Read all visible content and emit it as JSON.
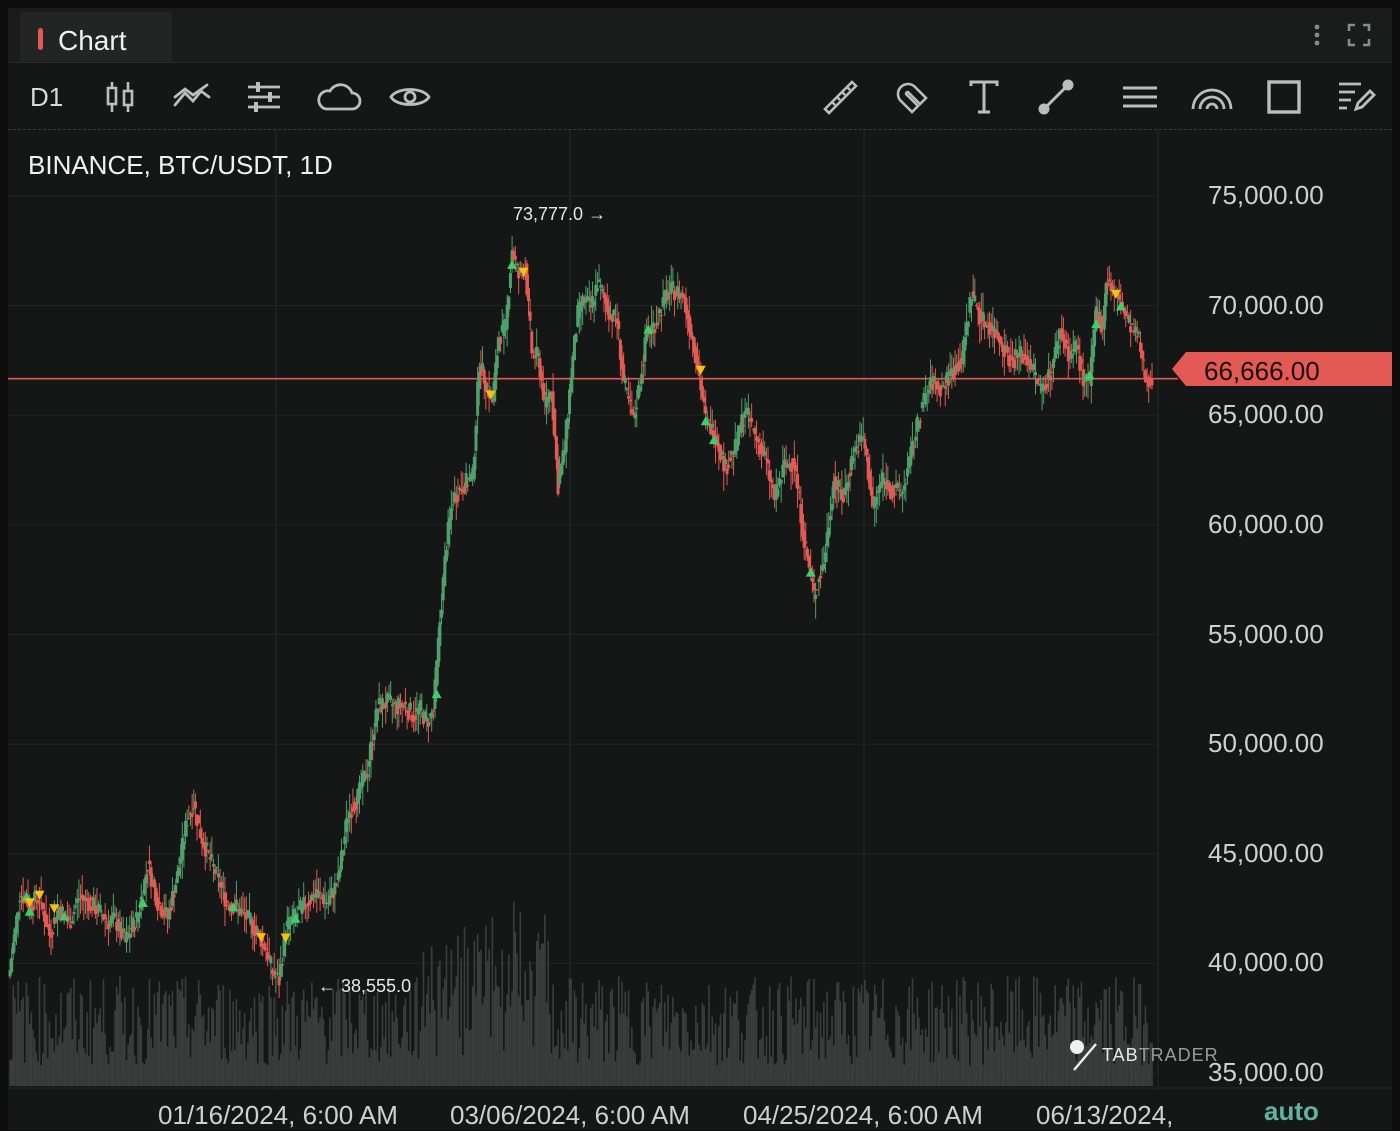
{
  "tab": {
    "label": "Chart"
  },
  "toolbar": {
    "timeframe": "D1",
    "left_tools": [
      "candlestick-icon",
      "indicators-icon",
      "settings-sliders-icon",
      "cloud-icon",
      "eye-icon"
    ],
    "right_tools": [
      "ruler-icon",
      "magnet-icon",
      "text-icon",
      "trendline-icon",
      "horizontal-lines-icon",
      "arc-icon",
      "rectangle-icon",
      "edit-list-icon"
    ]
  },
  "chart": {
    "symbol": "BINANCE, BTC/USDT, 1D",
    "current_price_label": "66,666.00",
    "auto_label": "auto",
    "watermark_a": "TAB",
    "watermark_b": "TRADER",
    "high_label": "73,777.0",
    "low_label": "38,555.0"
  },
  "colors": {
    "up": "#4fa06b",
    "down": "#e35a54",
    "buy_marker": "#3ecf6b",
    "sell_marker": "#f6c20a",
    "price_line": "#e35a54"
  },
  "chart_data": {
    "type": "candlestick",
    "title": "BINANCE, BTC/USDT, 1D",
    "y_ticks": [
      "75,000.00",
      "70,000.00",
      "65,000.00",
      "60,000.00",
      "55,000.00",
      "50,000.00",
      "45,000.00",
      "40,000.00",
      "35,000.00"
    ],
    "ylim": [
      34000,
      78800
    ],
    "x_ticks": [
      "01/16/2024, 6:00 AM",
      "03/06/2024, 6:00 AM",
      "04/25/2024, 6:00 AM",
      "06/13/2024,"
    ],
    "current_price": 66666,
    "high": 73777,
    "low": 38555,
    "path": [
      [
        0,
        39700
      ],
      [
        6,
        43200
      ],
      [
        12,
        42700
      ],
      [
        18,
        43000
      ],
      [
        24,
        41300
      ],
      [
        30,
        42600
      ],
      [
        36,
        41800
      ],
      [
        42,
        43000
      ],
      [
        48,
        42800
      ],
      [
        54,
        42400
      ],
      [
        60,
        41900
      ],
      [
        64,
        42000
      ],
      [
        70,
        41000
      ],
      [
        78,
        42200
      ],
      [
        84,
        44500
      ],
      [
        90,
        42800
      ],
      [
        96,
        42100
      ],
      [
        102,
        44000
      ],
      [
        108,
        46600
      ],
      [
        112,
        47300
      ],
      [
        116,
        45900
      ],
      [
        120,
        45100
      ],
      [
        126,
        44000
      ],
      [
        132,
        42800
      ],
      [
        138,
        42600
      ],
      [
        144,
        42100
      ],
      [
        150,
        41500
      ],
      [
        156,
        40700
      ],
      [
        160,
        39600
      ],
      [
        164,
        39200
      ],
      [
        168,
        41600
      ],
      [
        174,
        42200
      ],
      [
        180,
        42700
      ],
      [
        186,
        43200
      ],
      [
        194,
        42800
      ],
      [
        200,
        43800
      ],
      [
        206,
        46800
      ],
      [
        212,
        47600
      ],
      [
        218,
        48900
      ],
      [
        224,
        51700
      ],
      [
        230,
        51900
      ],
      [
        236,
        51700
      ],
      [
        240,
        51800
      ],
      [
        246,
        51300
      ],
      [
        250,
        51600
      ],
      [
        254,
        51000
      ],
      [
        258,
        51500
      ],
      [
        262,
        55600
      ],
      [
        266,
        59200
      ],
      [
        270,
        61200
      ],
      [
        276,
        61800
      ],
      [
        282,
        62200
      ],
      [
        286,
        67400
      ],
      [
        290,
        66500
      ],
      [
        294,
        65600
      ],
      [
        298,
        68600
      ],
      [
        302,
        69000
      ],
      [
        306,
        72600
      ],
      [
        310,
        71300
      ],
      [
        314,
        71800
      ],
      [
        318,
        67900
      ],
      [
        322,
        67600
      ],
      [
        326,
        65500
      ],
      [
        330,
        66200
      ],
      [
        334,
        61800
      ],
      [
        338,
        63500
      ],
      [
        342,
        66900
      ],
      [
        346,
        69600
      ],
      [
        350,
        70300
      ],
      [
        354,
        69900
      ],
      [
        358,
        71100
      ],
      [
        362,
        70300
      ],
      [
        366,
        69600
      ],
      [
        370,
        69300
      ],
      [
        374,
        66500
      ],
      [
        380,
        64700
      ],
      [
        384,
        66600
      ],
      [
        388,
        68700
      ],
      [
        394,
        69300
      ],
      [
        400,
        70500
      ],
      [
        404,
        70700
      ],
      [
        410,
        70500
      ],
      [
        418,
        67800
      ],
      [
        424,
        64800
      ],
      [
        430,
        64100
      ],
      [
        436,
        62600
      ],
      [
        442,
        63500
      ],
      [
        448,
        65300
      ],
      [
        454,
        64100
      ],
      [
        460,
        63100
      ],
      [
        466,
        61200
      ],
      [
        472,
        62700
      ],
      [
        478,
        62900
      ],
      [
        484,
        59300
      ],
      [
        490,
        56800
      ],
      [
        496,
        58300
      ],
      [
        502,
        62000
      ],
      [
        508,
        61200
      ],
      [
        514,
        63300
      ],
      [
        520,
        64000
      ],
      [
        526,
        60800
      ],
      [
        532,
        62200
      ],
      [
        538,
        61500
      ],
      [
        544,
        61500
      ],
      [
        550,
        63500
      ],
      [
        556,
        65500
      ],
      [
        562,
        66500
      ],
      [
        568,
        66200
      ],
      [
        574,
        67000
      ],
      [
        580,
        67500
      ],
      [
        586,
        70600
      ],
      [
        592,
        69400
      ],
      [
        598,
        69000
      ],
      [
        604,
        68400
      ],
      [
        610,
        67500
      ],
      [
        616,
        67800
      ],
      [
        622,
        67400
      ],
      [
        628,
        66200
      ],
      [
        634,
        66900
      ],
      [
        640,
        68800
      ],
      [
        646,
        67700
      ],
      [
        650,
        68200
      ],
      [
        654,
        66600
      ],
      [
        658,
        66400
      ],
      [
        662,
        69700
      ],
      [
        666,
        69100
      ],
      [
        668,
        71200
      ],
      [
        672,
        70700
      ],
      [
        676,
        70200
      ],
      [
        680,
        69500
      ],
      [
        684,
        68900
      ],
      [
        688,
        68400
      ],
      [
        692,
        66700
      ],
      [
        696,
        66700
      ]
    ],
    "volume_note": "volume histogram bars at bottom"
  }
}
